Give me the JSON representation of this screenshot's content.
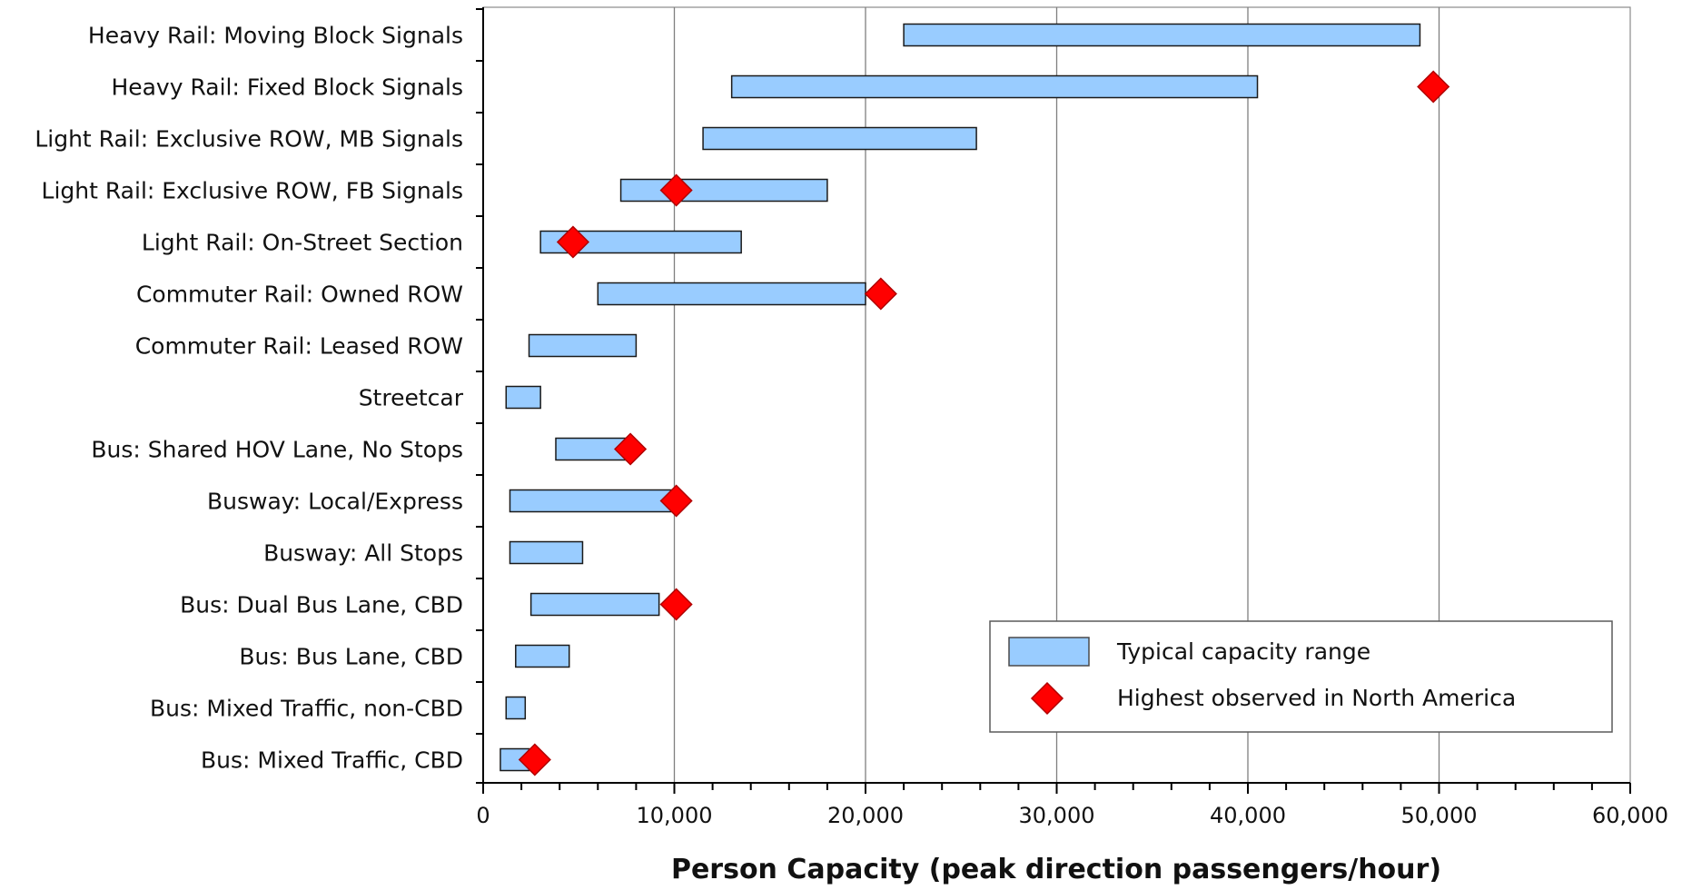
{
  "colors": {
    "bar_fill": "#99CCFF",
    "bar_stroke": "#1A1A1A",
    "marker_fill": "#FF0000",
    "marker_stroke": "#B00000",
    "grid": "#7F7F7F",
    "axis": "#000000"
  },
  "chart_data": {
    "type": "bar",
    "orientation": "horizontal-range",
    "title": "",
    "xlabel": "Person Capacity (peak direction passengers/hour)",
    "ylabel": "",
    "xlim": [
      0,
      60000
    ],
    "xticks": [
      0,
      10000,
      20000,
      30000,
      40000,
      50000,
      60000
    ],
    "xtick_labels": [
      "0",
      "10,000",
      "20,000",
      "30,000",
      "40,000",
      "50,000",
      "60,000"
    ],
    "grid": "vertical major gridlines",
    "legend_position": "lower-right",
    "categories": [
      "Heavy Rail: Moving Block Signals",
      "Heavy Rail: Fixed Block Signals",
      "Light Rail: Exclusive ROW, MB Signals",
      "Light Rail: Exclusive ROW, FB Signals",
      "Light Rail: On-Street Section",
      "Commuter Rail: Owned ROW",
      "Commuter Rail: Leased ROW",
      "Streetcar",
      "Bus: Shared HOV Lane, No Stops",
      "Busway: Local/Express",
      "Busway: All Stops",
      "Bus: Dual Bus Lane, CBD",
      "Bus: Bus Lane, CBD",
      "Bus: Mixed Traffic, non-CBD",
      "Bus: Mixed Traffic, CBD"
    ],
    "series": [
      {
        "name": "Typical capacity range",
        "type": "range",
        "values": [
          [
            22000,
            49000
          ],
          [
            13000,
            40500
          ],
          [
            11500,
            25800
          ],
          [
            7200,
            18000
          ],
          [
            3000,
            13500
          ],
          [
            6000,
            20000
          ],
          [
            2400,
            8000
          ],
          [
            1200,
            3000
          ],
          [
            3800,
            7500
          ],
          [
            1400,
            10000
          ],
          [
            1400,
            5200
          ],
          [
            2500,
            9200
          ],
          [
            1700,
            4500
          ],
          [
            1200,
            2200
          ],
          [
            900,
            2400
          ]
        ]
      },
      {
        "name": "Highest observed in North America",
        "type": "marker",
        "values": [
          null,
          49700,
          null,
          10100,
          4700,
          20800,
          null,
          null,
          7700,
          10100,
          null,
          10100,
          null,
          null,
          2700
        ]
      }
    ]
  }
}
